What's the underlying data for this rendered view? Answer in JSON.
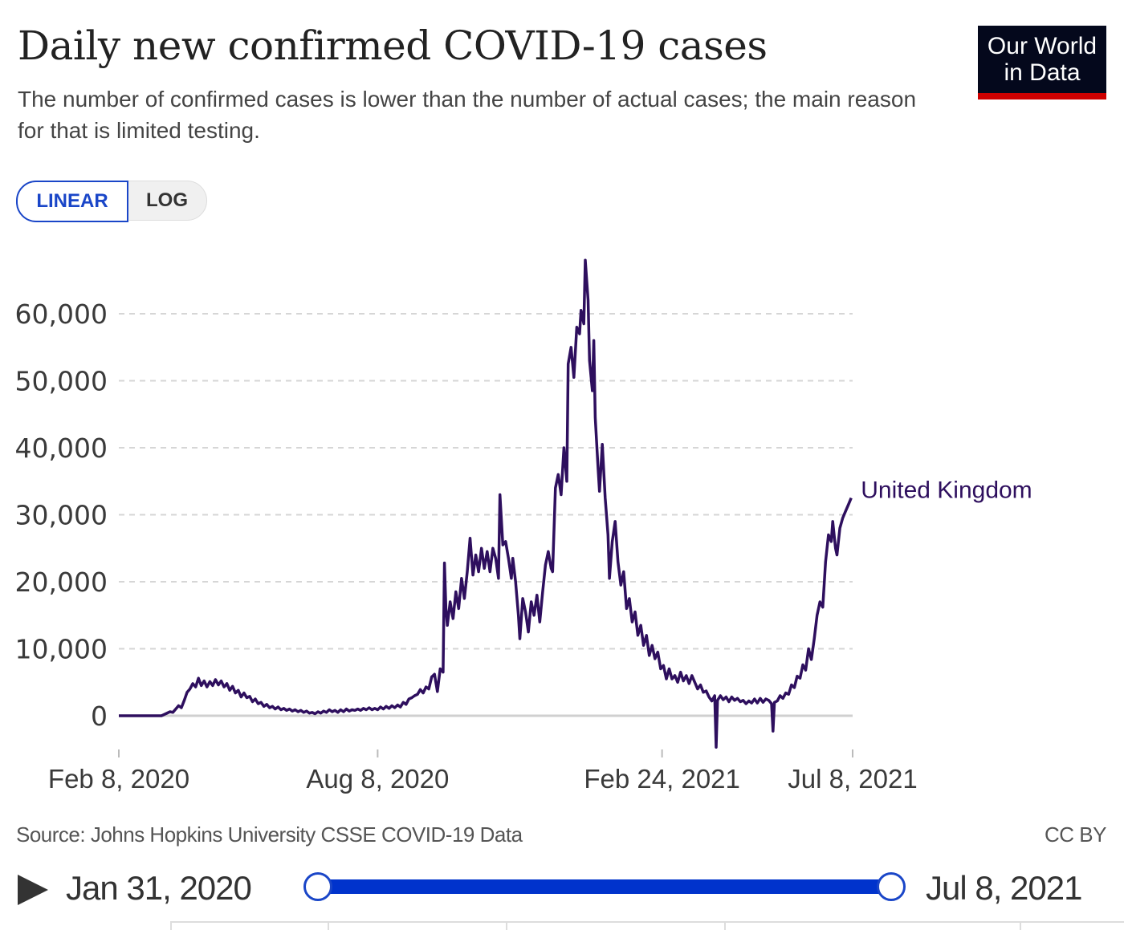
{
  "header": {
    "title": "Daily new confirmed COVID-19 cases",
    "subtitle": "The number of confirmed cases is lower than the number of actual cases; the main reason for that is limited testing.",
    "logo_text": "Our World in Data",
    "logo_line1": "Our World",
    "logo_line2": "in Data"
  },
  "controls": {
    "scale_options": [
      "LINEAR",
      "LOG"
    ],
    "selected_scale": "LINEAR"
  },
  "footer": {
    "source": "Source: Johns Hopkins University CSSE COVID-19 Data",
    "license": "CC BY"
  },
  "timeline": {
    "start_label": "Jan 31, 2020",
    "end_label": "Jul 8, 2021",
    "range_fraction": [
      0,
      1
    ]
  },
  "colors": {
    "series": "#2e0f5e",
    "accent": "#1a46c8",
    "slider": "#0033cc",
    "logo_bg": "#04081c",
    "logo_bar": "#ce0000"
  },
  "chart_data": {
    "type": "line",
    "title": "Daily new confirmed COVID-19 cases",
    "xlabel": "",
    "ylabel": "",
    "x_unit": "days since Feb 8, 2020",
    "ylim": [
      -5000,
      68000
    ],
    "yticks": [
      0,
      10000,
      20000,
      30000,
      40000,
      50000,
      60000
    ],
    "ytick_labels": [
      "0",
      "10,000",
      "20,000",
      "30,000",
      "40,000",
      "50,000",
      "60,000"
    ],
    "xticks": [
      0,
      182,
      382,
      516
    ],
    "xtick_labels": [
      "Feb 8, 2020",
      "Aug 8, 2020",
      "Feb 24, 2021",
      "Jul 8, 2021"
    ],
    "xlim": [
      0,
      516
    ],
    "grid": true,
    "legend": "end-of-line label",
    "series": [
      {
        "name": "United Kingdom",
        "points": [
          [
            0,
            0
          ],
          [
            20,
            0
          ],
          [
            30,
            0
          ],
          [
            33,
            300
          ],
          [
            36,
            600
          ],
          [
            38,
            500
          ],
          [
            40,
            1000
          ],
          [
            42,
            1500
          ],
          [
            44,
            1200
          ],
          [
            46,
            2300
          ],
          [
            48,
            3500
          ],
          [
            50,
            4000
          ],
          [
            52,
            4800
          ],
          [
            54,
            4300
          ],
          [
            56,
            5600
          ],
          [
            58,
            4500
          ],
          [
            60,
            5200
          ],
          [
            62,
            4300
          ],
          [
            64,
            5100
          ],
          [
            66,
            4500
          ],
          [
            68,
            5400
          ],
          [
            70,
            4600
          ],
          [
            72,
            5200
          ],
          [
            74,
            4300
          ],
          [
            76,
            4800
          ],
          [
            78,
            3800
          ],
          [
            80,
            4400
          ],
          [
            82,
            3400
          ],
          [
            84,
            3800
          ],
          [
            86,
            2800
          ],
          [
            88,
            3400
          ],
          [
            90,
            2700
          ],
          [
            92,
            2900
          ],
          [
            94,
            2100
          ],
          [
            96,
            2500
          ],
          [
            98,
            1800
          ],
          [
            100,
            2000
          ],
          [
            102,
            1400
          ],
          [
            104,
            1700
          ],
          [
            106,
            1200
          ],
          [
            108,
            1400
          ],
          [
            110,
            1000
          ],
          [
            112,
            1300
          ],
          [
            114,
            900
          ],
          [
            116,
            1100
          ],
          [
            118,
            800
          ],
          [
            120,
            1000
          ],
          [
            122,
            700
          ],
          [
            124,
            900
          ],
          [
            126,
            600
          ],
          [
            128,
            800
          ],
          [
            130,
            500
          ],
          [
            132,
            700
          ],
          [
            134,
            400
          ],
          [
            136,
            500
          ],
          [
            138,
            300
          ],
          [
            140,
            600
          ],
          [
            142,
            400
          ],
          [
            144,
            700
          ],
          [
            146,
            500
          ],
          [
            148,
            900
          ],
          [
            150,
            600
          ],
          [
            152,
            800
          ],
          [
            154,
            500
          ],
          [
            156,
            900
          ],
          [
            158,
            600
          ],
          [
            160,
            1000
          ],
          [
            162,
            700
          ],
          [
            164,
            900
          ],
          [
            166,
            800
          ],
          [
            168,
            1000
          ],
          [
            170,
            800
          ],
          [
            172,
            1100
          ],
          [
            174,
            900
          ],
          [
            176,
            1200
          ],
          [
            178,
            900
          ],
          [
            180,
            1100
          ],
          [
            182,
            900
          ],
          [
            184,
            1300
          ],
          [
            186,
            1000
          ],
          [
            188,
            1400
          ],
          [
            190,
            1100
          ],
          [
            192,
            1500
          ],
          [
            194,
            1200
          ],
          [
            196,
            1600
          ],
          [
            198,
            1300
          ],
          [
            200,
            2000
          ],
          [
            202,
            1700
          ],
          [
            204,
            2500
          ],
          [
            206,
            2700
          ],
          [
            208,
            3000
          ],
          [
            210,
            3200
          ],
          [
            212,
            3900
          ],
          [
            214,
            3400
          ],
          [
            216,
            4300
          ],
          [
            218,
            4000
          ],
          [
            220,
            5800
          ],
          [
            222,
            6200
          ],
          [
            224,
            3600
          ],
          [
            226,
            7000
          ],
          [
            228,
            6500
          ],
          [
            229,
            22800
          ],
          [
            230,
            16000
          ],
          [
            231,
            13500
          ],
          [
            233,
            17000
          ],
          [
            235,
            14500
          ],
          [
            237,
            18500
          ],
          [
            239,
            16000
          ],
          [
            241,
            20500
          ],
          [
            243,
            17500
          ],
          [
            245,
            21500
          ],
          [
            247,
            26500
          ],
          [
            249,
            21000
          ],
          [
            251,
            24000
          ],
          [
            253,
            21500
          ],
          [
            255,
            25000
          ],
          [
            257,
            22000
          ],
          [
            259,
            24500
          ],
          [
            261,
            21500
          ],
          [
            263,
            25000
          ],
          [
            265,
            23500
          ],
          [
            267,
            20500
          ],
          [
            268,
            33000
          ],
          [
            270,
            25500
          ],
          [
            272,
            26000
          ],
          [
            274,
            23500
          ],
          [
            276,
            20500
          ],
          [
            277,
            23500
          ],
          [
            279,
            20000
          ],
          [
            281,
            15000
          ],
          [
            282,
            11500
          ],
          [
            284,
            17500
          ],
          [
            286,
            15500
          ],
          [
            288,
            12500
          ],
          [
            290,
            17000
          ],
          [
            292,
            15000
          ],
          [
            294,
            18000
          ],
          [
            296,
            14000
          ],
          [
            298,
            18500
          ],
          [
            300,
            22500
          ],
          [
            302,
            24500
          ],
          [
            304,
            22000
          ],
          [
            305,
            21500
          ],
          [
            307,
            34000
          ],
          [
            309,
            36000
          ],
          [
            311,
            33000
          ],
          [
            313,
            40000
          ],
          [
            315,
            35000
          ],
          [
            316,
            52500
          ],
          [
            318,
            55000
          ],
          [
            320,
            50500
          ],
          [
            322,
            58000
          ],
          [
            324,
            57000
          ],
          [
            325,
            60500
          ],
          [
            327,
            58500
          ],
          [
            328,
            68000
          ],
          [
            330,
            62000
          ],
          [
            331,
            53000
          ],
          [
            333,
            48500
          ],
          [
            334,
            56000
          ],
          [
            335,
            44500
          ],
          [
            337,
            37000
          ],
          [
            338,
            33500
          ],
          [
            340,
            40500
          ],
          [
            342,
            32500
          ],
          [
            344,
            27000
          ],
          [
            345,
            20500
          ],
          [
            347,
            26000
          ],
          [
            349,
            29000
          ],
          [
            351,
            23000
          ],
          [
            353,
            19500
          ],
          [
            355,
            21500
          ],
          [
            357,
            16000
          ],
          [
            359,
            17500
          ],
          [
            361,
            14000
          ],
          [
            363,
            15500
          ],
          [
            365,
            12000
          ],
          [
            367,
            13500
          ],
          [
            369,
            10500
          ],
          [
            371,
            12000
          ],
          [
            373,
            9000
          ],
          [
            375,
            10500
          ],
          [
            377,
            8500
          ],
          [
            379,
            9500
          ],
          [
            381,
            7000
          ],
          [
            383,
            7500
          ],
          [
            385,
            5500
          ],
          [
            387,
            7000
          ],
          [
            389,
            5500
          ],
          [
            391,
            6000
          ],
          [
            393,
            5000
          ],
          [
            395,
            6500
          ],
          [
            397,
            5200
          ],
          [
            399,
            6000
          ],
          [
            401,
            4800
          ],
          [
            403,
            6000
          ],
          [
            405,
            5000
          ],
          [
            407,
            4000
          ],
          [
            409,
            4600
          ],
          [
            411,
            3500
          ],
          [
            413,
            3700
          ],
          [
            415,
            2800
          ],
          [
            417,
            2200
          ],
          [
            419,
            3000
          ],
          [
            420,
            -4700
          ],
          [
            421,
            2300
          ],
          [
            423,
            3000
          ],
          [
            425,
            2400
          ],
          [
            427,
            2800
          ],
          [
            429,
            2100
          ],
          [
            431,
            2800
          ],
          [
            433,
            2300
          ],
          [
            435,
            2600
          ],
          [
            437,
            2100
          ],
          [
            439,
            2300
          ],
          [
            441,
            1800
          ],
          [
            443,
            2200
          ],
          [
            445,
            1900
          ],
          [
            447,
            2500
          ],
          [
            449,
            1900
          ],
          [
            451,
            2600
          ],
          [
            453,
            2000
          ],
          [
            455,
            2500
          ],
          [
            457,
            2300
          ],
          [
            459,
            1800
          ],
          [
            460,
            -2300
          ],
          [
            461,
            2000
          ],
          [
            463,
            2200
          ],
          [
            465,
            3000
          ],
          [
            467,
            2600
          ],
          [
            469,
            3400
          ],
          [
            471,
            3200
          ],
          [
            473,
            4600
          ],
          [
            475,
            4200
          ],
          [
            477,
            5900
          ],
          [
            479,
            5600
          ],
          [
            481,
            7600
          ],
          [
            483,
            6800
          ],
          [
            485,
            10000
          ],
          [
            487,
            8400
          ],
          [
            489,
            11500
          ],
          [
            491,
            15000
          ],
          [
            493,
            17000
          ],
          [
            495,
            16200
          ],
          [
            497,
            23000
          ],
          [
            499,
            27000
          ],
          [
            501,
            26000
          ],
          [
            502,
            29000
          ],
          [
            504,
            25000
          ],
          [
            505,
            24000
          ],
          [
            507,
            28000
          ],
          [
            509,
            29500
          ],
          [
            511,
            30500
          ],
          [
            513,
            31500
          ],
          [
            515,
            32500
          ]
        ]
      }
    ]
  }
}
